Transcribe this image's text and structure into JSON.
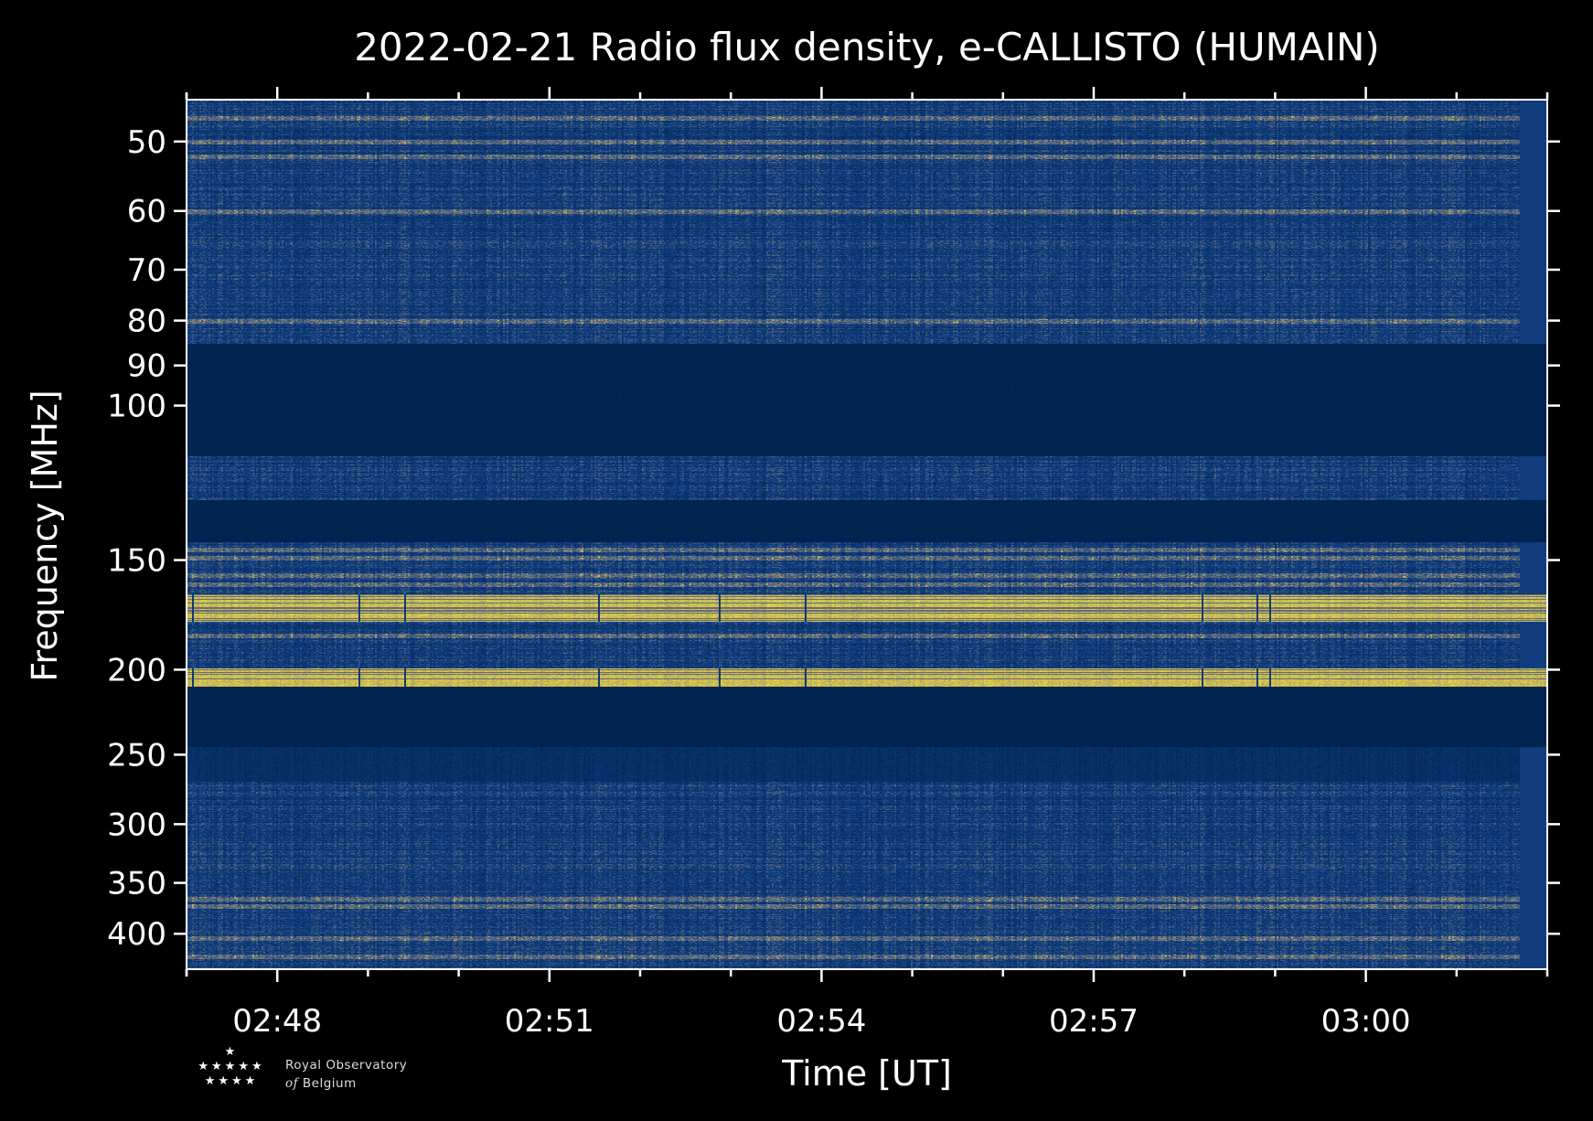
{
  "chart_data": {
    "type": "heatmap",
    "title": "2022-02-21 Radio flux density, e-CALLISTO (HUMAIN)",
    "xlabel": "Time [UT]",
    "ylabel": "Frequency [MHz]",
    "x_ticks": [
      "02:48",
      "02:51",
      "02:54",
      "02:57",
      "03:00"
    ],
    "x_tick_minutes": [
      168,
      171,
      174,
      177,
      180
    ],
    "xlim_minutes": [
      167,
      182
    ],
    "y_ticks": [
      50,
      60,
      70,
      80,
      90,
      100,
      150,
      200,
      250,
      300,
      350,
      400
    ],
    "y_scale": "log",
    "y_inverted": true,
    "ylim": [
      44.8,
      439
    ],
    "grid": false,
    "colormap": "cividis",
    "colors": {
      "low": "#00224e",
      "mid": "#123f82",
      "gray": "#7b7b78",
      "high": "#ffe83a",
      "background": "#000000"
    },
    "bands": [
      {
        "from": 44.8,
        "to": 85,
        "level": "noisy",
        "lines": [
          47,
          50,
          52,
          60,
          80
        ]
      },
      {
        "from": 85,
        "to": 114,
        "level": "low"
      },
      {
        "from": 114,
        "to": 128,
        "level": "noisy",
        "lines": []
      },
      {
        "from": 128,
        "to": 143,
        "level": "low"
      },
      {
        "from": 143,
        "to": 164,
        "level": "noisy",
        "lines": [
          146,
          149,
          156,
          160
        ]
      },
      {
        "from": 164,
        "to": 176,
        "level": "high"
      },
      {
        "from": 176,
        "to": 199,
        "level": "noisy",
        "lines": [
          183
        ]
      },
      {
        "from": 199,
        "to": 209,
        "level": "high"
      },
      {
        "from": 209,
        "to": 245,
        "level": "low"
      },
      {
        "from": 245,
        "to": 268,
        "level": "noisy-low",
        "lines": []
      },
      {
        "from": 268,
        "to": 439,
        "level": "noisy",
        "lines": [
          365,
          372,
          405,
          425
        ]
      }
    ]
  },
  "logo": {
    "line1": "Royal Observatory",
    "line2_prefix": "of",
    "line2": "Belgium"
  }
}
